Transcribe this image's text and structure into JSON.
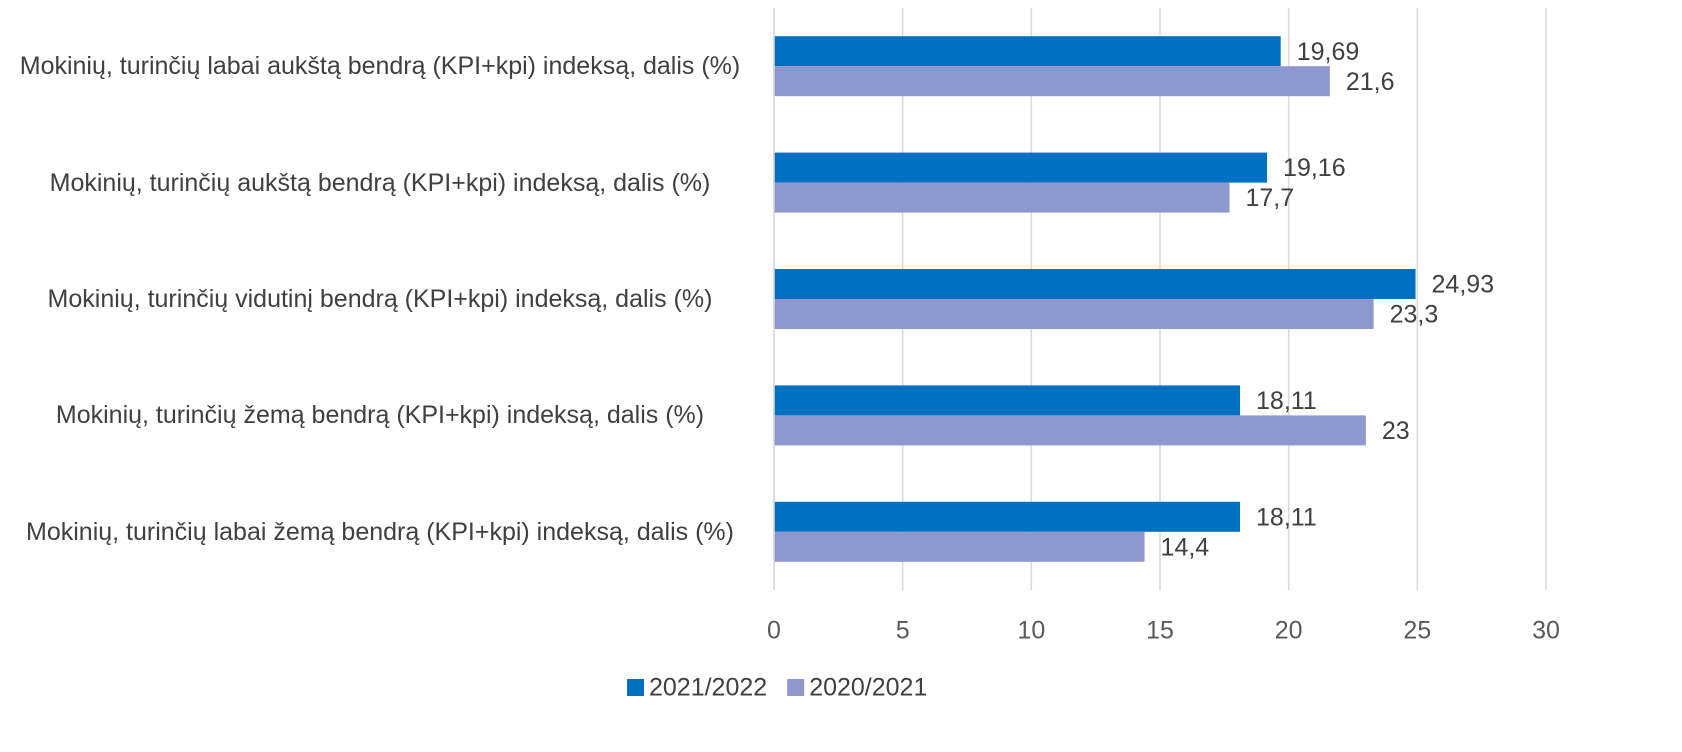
{
  "chart_data": {
    "type": "hbar",
    "categories": [
      "Mokinių, turinčių labai aukštą bendrą (KPI+kpi) indeksą, dalis (%)",
      "Mokinių, turinčių aukštą bendrą (KPI+kpi) indeksą, dalis (%)",
      "Mokinių, turinčių vidutinį bendrą (KPI+kpi) indeksą, dalis (%)",
      "Mokinių, turinčių žemą bendrą (KPI+kpi) indeksą, dalis (%)",
      "Mokinių, turinčių labai žemą bendrą (KPI+kpi) indeksą, dalis (%)"
    ],
    "series": [
      {
        "name": "2021/2022",
        "color": "#0070c0",
        "values": [
          19.69,
          19.16,
          24.93,
          18.11,
          18.11
        ],
        "value_labels": [
          "19,69",
          "19,16",
          "24,93",
          "18,11",
          "18,11"
        ]
      },
      {
        "name": "2020/2021",
        "color": "#8f97cf",
        "values": [
          21.6,
          17.7,
          23.3,
          23,
          14.4
        ],
        "value_labels": [
          "21,6",
          "17,7",
          "23,3",
          "23",
          "14,4"
        ]
      }
    ],
    "xlim": [
      0,
      30
    ],
    "xticks": [
      0,
      5,
      10,
      15,
      20,
      25,
      30
    ],
    "grid": true,
    "legend": "bottom"
  }
}
